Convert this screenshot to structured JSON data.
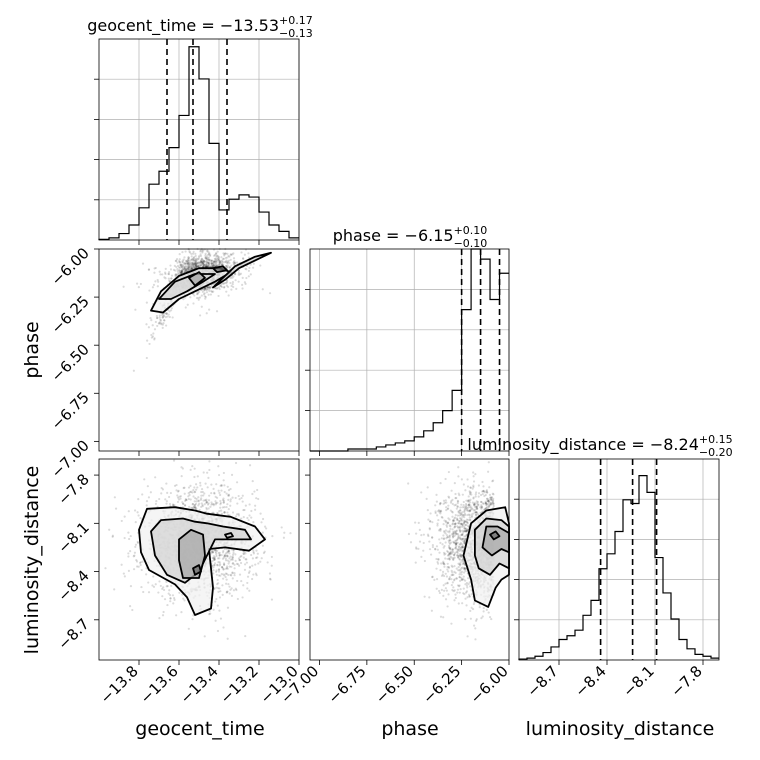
{
  "chart_data": {
    "type": "corner",
    "parameters": [
      "geocent_time",
      "phase",
      "luminosity_distance"
    ],
    "axis_labels": {
      "x": [
        "geocent_time",
        "phase",
        "luminosity_distance"
      ],
      "y": [
        "phase",
        "luminosity_distance"
      ]
    },
    "titles": [
      {
        "param": "geocent_time",
        "text": "geocent_time = −13.53",
        "sup": "+0.17",
        "sub": "−0.13"
      },
      {
        "param": "phase",
        "text": "phase = −6.15",
        "sup": "+0.10",
        "sub": "−0.10"
      },
      {
        "param": "luminosity_distance",
        "text": "luminosity_distance = −8.24",
        "sup": "+0.15",
        "sub": "−0.20"
      }
    ],
    "ranges": {
      "geocent_time": [
        -14.0,
        -13.0
      ],
      "phase": [
        -7.05,
        -6.0
      ],
      "luminosity_distance": [
        -8.95,
        -7.7
      ]
    },
    "ticks": {
      "geocent_time": {
        "values": [
          -13.8,
          -13.6,
          -13.4,
          -13.2,
          -13.0
        ],
        "labels": [
          "−13.8",
          "−13.6",
          "−13.4",
          "−13.2",
          "−13.0"
        ]
      },
      "phase_x": {
        "values": [
          -7.0,
          -6.75,
          -6.5,
          -6.25,
          -6.0
        ],
        "labels": [
          "−7.00",
          "−6.75",
          "−6.50",
          "−6.25",
          "−6.00"
        ]
      },
      "phase_y": {
        "values": [
          -6.0,
          -6.25,
          -6.5,
          -6.75,
          -7.0
        ],
        "labels": [
          "−6.00",
          "−6.25",
          "−6.50",
          "−6.75",
          "−7.00"
        ]
      },
      "luminosity_distance": {
        "values": [
          -8.7,
          -8.4,
          -8.1,
          -7.8
        ],
        "labels": [
          "−8.7",
          "−8.4",
          "−8.1",
          "−7.8"
        ]
      }
    },
    "quantiles": {
      "geocent_time": [
        -13.66,
        -13.53,
        -13.36
      ],
      "phase": [
        -6.25,
        -6.15,
        -6.05
      ],
      "luminosity_distance": [
        -8.44,
        -8.24,
        -8.09
      ]
    },
    "histograms": {
      "geocent_time": {
        "edges": [
          -14.0,
          -13.95,
          -13.9,
          -13.85,
          -13.8,
          -13.75,
          -13.7,
          -13.65,
          -13.6,
          -13.55,
          -13.5,
          -13.45,
          -13.4,
          -13.35,
          -13.3,
          -13.25,
          -13.2,
          -13.15,
          -13.1,
          -13.05,
          -13.0
        ],
        "counts": [
          0.3,
          1,
          3,
          7,
          15,
          26,
          32,
          43,
          58,
          90,
          75,
          45,
          14,
          19,
          21,
          20,
          13,
          7,
          4,
          1
        ]
      },
      "phase": {
        "edges": [
          -7.05,
          -7.0,
          -6.95,
          -6.9,
          -6.85,
          -6.8,
          -6.75,
          -6.7,
          -6.65,
          -6.6,
          -6.55,
          -6.5,
          -6.45,
          -6.4,
          -6.35,
          -6.3,
          -6.25,
          -6.2,
          -6.15,
          -6.1,
          -6.05,
          -6.0
        ],
        "counts": [
          0,
          0,
          0,
          0,
          1,
          1,
          1,
          2,
          3,
          4,
          5,
          7,
          10,
          14,
          20,
          30,
          70,
          100,
          95,
          75,
          88
        ]
      },
      "luminosity_distance": {
        "edges": [
          -8.95,
          -8.9,
          -8.85,
          -8.8,
          -8.75,
          -8.7,
          -8.65,
          -8.6,
          -8.55,
          -8.5,
          -8.45,
          -8.4,
          -8.35,
          -8.3,
          -8.25,
          -8.2,
          -8.15,
          -8.1,
          -8.05,
          -8.0,
          -7.95,
          -7.9,
          -7.85,
          -7.8,
          -7.75,
          -7.7
        ],
        "counts": [
          0.5,
          1,
          2,
          4,
          7,
          11,
          13,
          16,
          24,
          32,
          49,
          57,
          69,
          86,
          84,
          99,
          90,
          55,
          36,
          22,
          11,
          6,
          3,
          2,
          1
        ]
      }
    },
    "contours": {
      "geocent_time_vs_phase": [
        [
          [
            -13.74,
            -6.32
          ],
          [
            -13.69,
            -6.22
          ],
          [
            -13.6,
            -6.14
          ],
          [
            -13.5,
            -6.1
          ],
          [
            -13.4,
            -6.1
          ],
          [
            -13.34,
            -6.12
          ],
          [
            -13.42,
            -6.17
          ],
          [
            -13.52,
            -6.22
          ],
          [
            -13.6,
            -6.26
          ],
          [
            -13.68,
            -6.33
          ],
          [
            -13.74,
            -6.32
          ]
        ],
        [
          [
            -13.7,
            -6.26
          ],
          [
            -13.62,
            -6.17
          ],
          [
            -13.52,
            -6.13
          ],
          [
            -13.42,
            -6.13
          ],
          [
            -13.48,
            -6.17
          ],
          [
            -13.56,
            -6.22
          ],
          [
            -13.64,
            -6.26
          ],
          [
            -13.7,
            -6.26
          ]
        ],
        [
          [
            -13.55,
            -6.15
          ],
          [
            -13.5,
            -6.12
          ],
          [
            -13.47,
            -6.15
          ],
          [
            -13.52,
            -6.19
          ],
          [
            -13.55,
            -6.15
          ]
        ],
        [
          [
            -13.43,
            -6.1
          ],
          [
            -13.38,
            -6.09
          ],
          [
            -13.36,
            -6.11
          ],
          [
            -13.41,
            -6.12
          ],
          [
            -13.43,
            -6.1
          ]
        ],
        [
          [
            -13.43,
            -6.2
          ],
          [
            -13.32,
            -6.09
          ],
          [
            -13.22,
            -6.04
          ],
          [
            -13.14,
            -6.02
          ],
          [
            -13.2,
            -6.05
          ],
          [
            -13.3,
            -6.1
          ],
          [
            -13.37,
            -6.16
          ],
          [
            -13.43,
            -6.2
          ]
        ]
      ],
      "geocent_time_vs_luminosity_distance": [
        [
          [
            -13.8,
            -8.14
          ],
          [
            -13.76,
            -8.01
          ],
          [
            -13.62,
            -8.0
          ],
          [
            -13.52,
            -8.02
          ],
          [
            -13.46,
            -8.04
          ],
          [
            -13.4,
            -8.05
          ],
          [
            -13.34,
            -8.06
          ],
          [
            -13.22,
            -8.12
          ],
          [
            -13.17,
            -8.2
          ],
          [
            -13.25,
            -8.27
          ],
          [
            -13.37,
            -8.25
          ],
          [
            -13.45,
            -8.26
          ],
          [
            -13.43,
            -8.5
          ],
          [
            -13.44,
            -8.63
          ],
          [
            -13.52,
            -8.67
          ],
          [
            -13.56,
            -8.56
          ],
          [
            -13.62,
            -8.48
          ],
          [
            -13.75,
            -8.39
          ],
          [
            -13.79,
            -8.28
          ],
          [
            -13.8,
            -8.14
          ]
        ],
        [
          [
            -13.74,
            -8.15
          ],
          [
            -13.69,
            -8.08
          ],
          [
            -13.58,
            -8.07
          ],
          [
            -13.52,
            -8.09
          ],
          [
            -13.46,
            -8.1
          ],
          [
            -13.38,
            -8.12
          ],
          [
            -13.27,
            -8.14
          ],
          [
            -13.24,
            -8.2
          ],
          [
            -13.34,
            -8.2
          ],
          [
            -13.42,
            -8.2
          ],
          [
            -13.5,
            -8.4
          ],
          [
            -13.57,
            -8.47
          ],
          [
            -13.66,
            -8.42
          ],
          [
            -13.72,
            -8.3
          ],
          [
            -13.74,
            -8.15
          ]
        ],
        [
          [
            -13.6,
            -8.33
          ],
          [
            -13.6,
            -8.2
          ],
          [
            -13.54,
            -8.14
          ],
          [
            -13.48,
            -8.17
          ],
          [
            -13.47,
            -8.3
          ],
          [
            -13.5,
            -8.44
          ],
          [
            -13.58,
            -8.44
          ],
          [
            -13.6,
            -8.33
          ]
        ],
        [
          [
            -13.53,
            -8.38
          ],
          [
            -13.5,
            -8.36
          ],
          [
            -13.49,
            -8.4
          ],
          [
            -13.52,
            -8.42
          ],
          [
            -13.53,
            -8.38
          ]
        ],
        [
          [
            -13.37,
            -8.17
          ],
          [
            -13.34,
            -8.16
          ],
          [
            -13.33,
            -8.18
          ],
          [
            -13.36,
            -8.19
          ],
          [
            -13.37,
            -8.17
          ]
        ]
      ],
      "phase_vs_luminosity_distance": [
        [
          [
            -6.2,
            -8.45
          ],
          [
            -6.24,
            -8.3
          ],
          [
            -6.2,
            -8.1
          ],
          [
            -6.12,
            -8.02
          ],
          [
            -6.02,
            -8.0
          ],
          [
            -6.0,
            -8.1
          ],
          [
            -6.0,
            -8.42
          ],
          [
            -6.04,
            -8.45
          ],
          [
            -6.07,
            -8.5
          ],
          [
            -6.11,
            -8.62
          ],
          [
            -6.18,
            -8.58
          ],
          [
            -6.2,
            -8.45
          ]
        ],
        [
          [
            -6.18,
            -8.3
          ],
          [
            -6.18,
            -8.14
          ],
          [
            -6.12,
            -8.07
          ],
          [
            -6.04,
            -8.08
          ],
          [
            -6.0,
            -8.12
          ],
          [
            -6.0,
            -8.38
          ],
          [
            -6.05,
            -8.35
          ],
          [
            -6.1,
            -8.42
          ],
          [
            -6.16,
            -8.38
          ],
          [
            -6.18,
            -8.3
          ]
        ],
        [
          [
            -6.14,
            -8.25
          ],
          [
            -6.12,
            -8.12
          ],
          [
            -6.06,
            -8.12
          ],
          [
            -6.0,
            -8.16
          ],
          [
            -6.0,
            -8.28
          ],
          [
            -6.04,
            -8.26
          ],
          [
            -6.09,
            -8.3
          ],
          [
            -6.14,
            -8.25
          ]
        ],
        [
          [
            -6.1,
            -8.17
          ],
          [
            -6.07,
            -8.15
          ],
          [
            -6.05,
            -8.18
          ],
          [
            -6.08,
            -8.2
          ],
          [
            -6.1,
            -8.17
          ]
        ]
      ]
    },
    "grid": true,
    "legend": "none"
  }
}
